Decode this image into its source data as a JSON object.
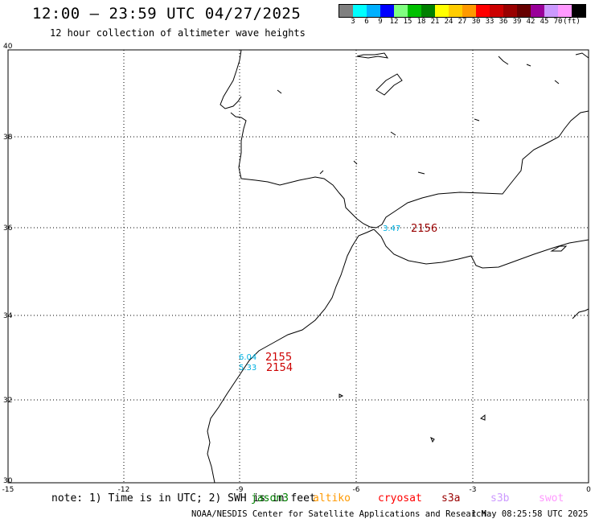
{
  "header": {
    "title": "12:00 – 23:59 UTC 04/27/2025",
    "subtitle": "12 hour collection of altimeter wave heights"
  },
  "colorbar": {
    "colors": [
      "#808080",
      "#00ffff",
      "#00b0ff",
      "#0000ff",
      "#80ff80",
      "#00c000",
      "#008000",
      "#ffff00",
      "#ffcc00",
      "#ff9900",
      "#ff0000",
      "#cc0000",
      "#990000",
      "#660000",
      "#990099",
      "#cc99ff",
      "#ff99ff",
      "#000000"
    ],
    "labels": [
      "3",
      "6",
      "9",
      "12",
      "15",
      "18",
      "21",
      "24",
      "27",
      "30",
      "33",
      "36",
      "39",
      "42",
      "45",
      "70",
      "(ft)"
    ]
  },
  "axes": {
    "y_ticks": [
      "40",
      "38",
      "36",
      "34",
      "32",
      "30"
    ],
    "x_ticks": [
      "-15",
      "-12",
      "-9",
      "-6",
      "-3",
      "0"
    ]
  },
  "observations": [
    {
      "swh": "3.47",
      "pass": "2156",
      "swh_color": "#00b0e0",
      "pass_color": "#990000"
    },
    {
      "swh": "6.04",
      "pass": "2155",
      "swh_color": "#00b0e0",
      "pass_color": "#cc0000"
    },
    {
      "swh": "5.33",
      "pass": "2154",
      "swh_color": "#00b0e0",
      "pass_color": "#cc0000"
    }
  ],
  "footer": {
    "note": "note: 1) Time is in UTC; 2) SWH is in feet",
    "satellites": [
      {
        "name": "jason3",
        "color": "#008000"
      },
      {
        "name": "altiko",
        "color": "#ff9900"
      },
      {
        "name": "cryosat",
        "color": "#ff0000"
      },
      {
        "name": "s3a",
        "color": "#990000"
      },
      {
        "name": "s3b",
        "color": "#cc99ff"
      },
      {
        "name": "swot",
        "color": "#ff99ff"
      }
    ],
    "credit": "NOAA/NESDIS Center for Satellite Applications and Research",
    "timestamp": "1 May 08:25:58 UTC 2025"
  }
}
